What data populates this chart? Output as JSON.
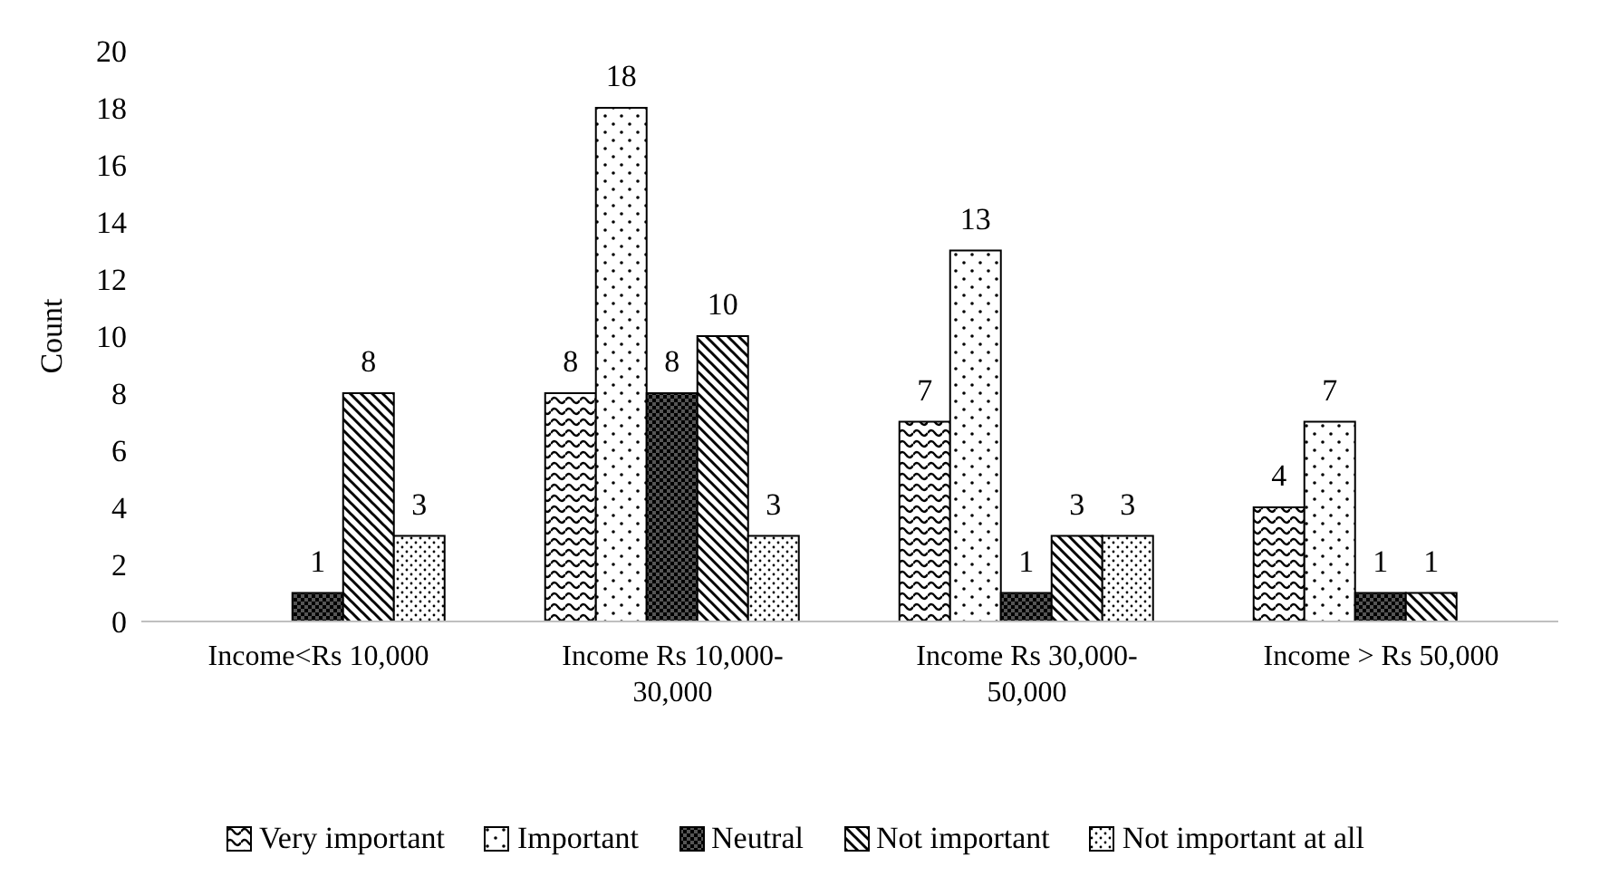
{
  "chart_data": {
    "type": "bar",
    "ylabel": "Count",
    "categories": [
      "Income<Rs 10,000",
      "Income Rs 10,000-30,000",
      "Income Rs 30,000-50,000",
      "Income > Rs 50,000"
    ],
    "series": [
      {
        "name": "Very important",
        "color": "#000000",
        "values": [
          null,
          8,
          7,
          4
        ]
      },
      {
        "name": "Important",
        "color": "#000000",
        "values": [
          null,
          18,
          13,
          7
        ]
      },
      {
        "name": "Neutral",
        "color": "#000000",
        "values": [
          1,
          8,
          1,
          1
        ]
      },
      {
        "name": "Not important",
        "color": "#000000",
        "values": [
          8,
          10,
          3,
          1
        ]
      },
      {
        "name": "Not important at all",
        "color": "#000000",
        "values": [
          3,
          3,
          3,
          null
        ]
      }
    ],
    "ylim": [
      0,
      20
    ],
    "yticks": [
      0,
      2,
      4,
      6,
      8,
      10,
      12,
      14,
      16,
      18,
      20
    ],
    "legend": "bottom",
    "data_labels": true
  }
}
